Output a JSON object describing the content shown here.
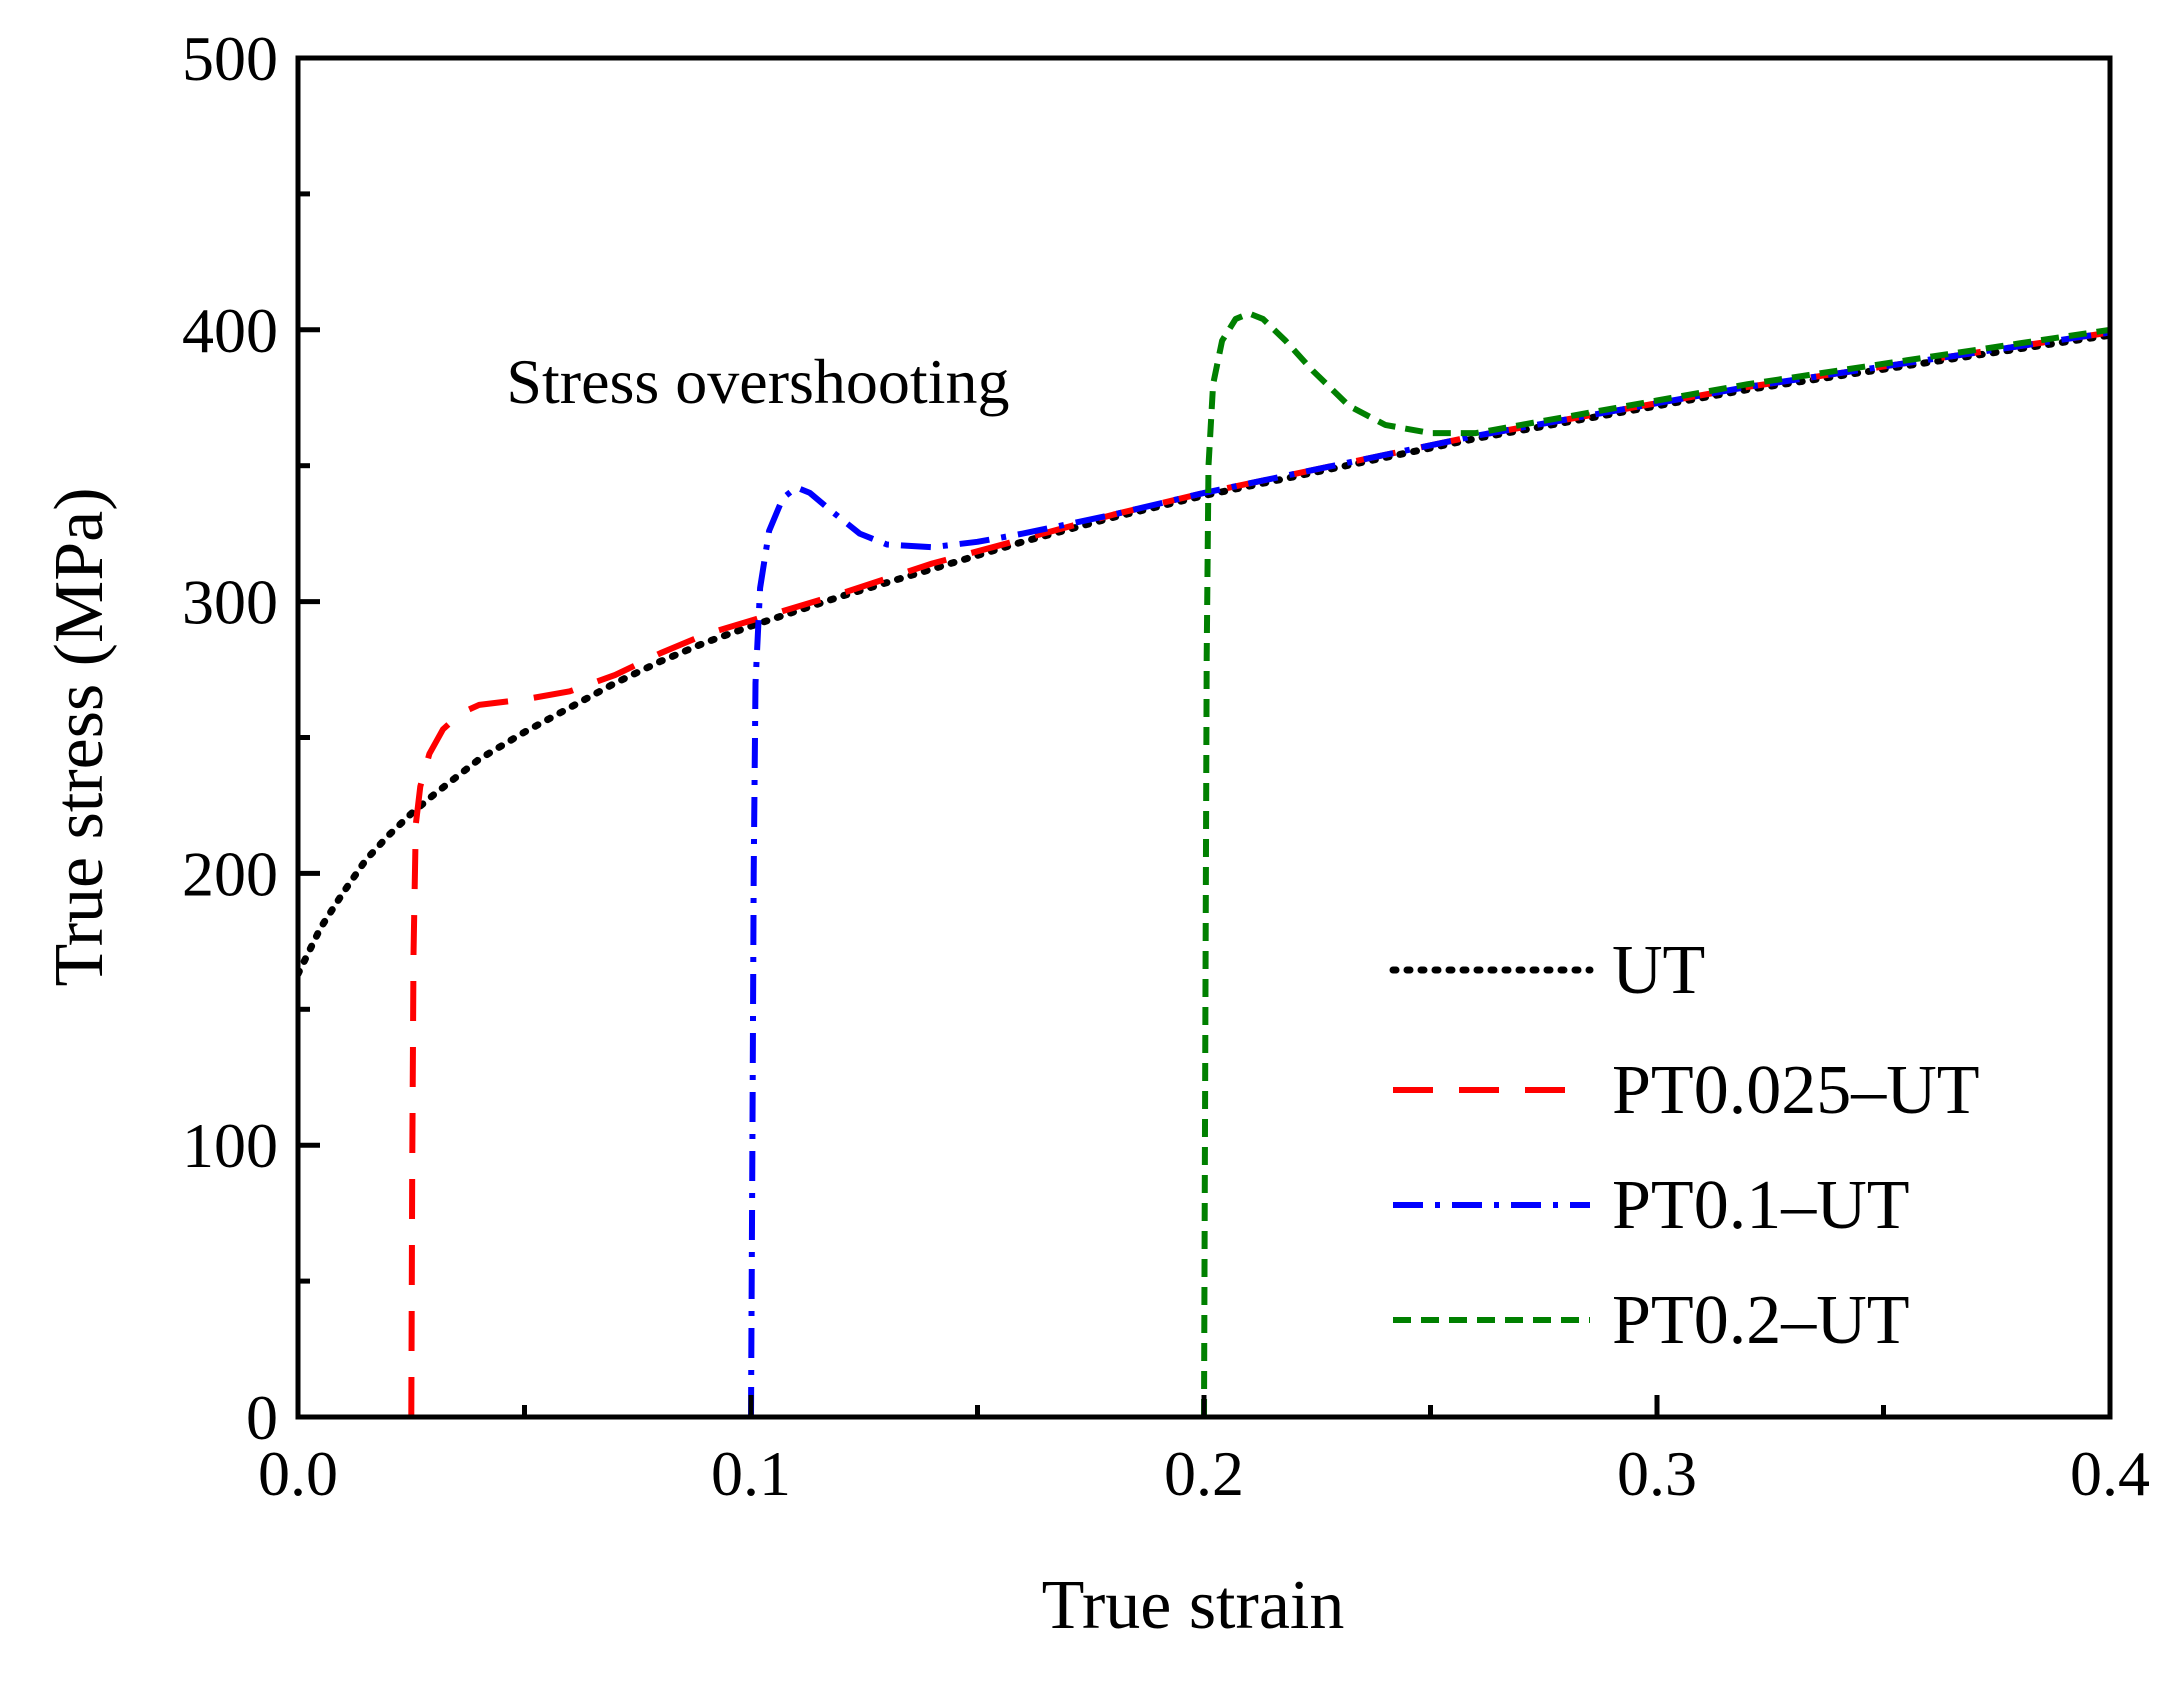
{
  "chart_data": {
    "type": "line",
    "title": "",
    "xlabel": "True strain",
    "ylabel": "True stress (MPa)",
    "xlim": [
      0.0,
      0.4
    ],
    "ylim": [
      0,
      500
    ],
    "x_ticks": [
      0.0,
      0.1,
      0.2,
      0.3,
      0.4
    ],
    "x_tick_labels": [
      "0.0",
      "0.1",
      "0.2",
      "0.3",
      "0.4"
    ],
    "y_ticks": [
      0,
      100,
      200,
      300,
      400,
      500
    ],
    "y_tick_labels": [
      "0",
      "100",
      "200",
      "300",
      "400",
      "500"
    ],
    "grid": false,
    "legend_position": "bottom-right",
    "annotations": [
      {
        "text": "Stress overshooting",
        "x": 0.046,
        "y": 373
      }
    ],
    "series": [
      {
        "name": "UT",
        "color": "#000000",
        "style": "dotted",
        "points": [
          [
            0.0,
            163
          ],
          [
            0.005,
            180
          ],
          [
            0.01,
            193
          ],
          [
            0.015,
            205
          ],
          [
            0.02,
            214
          ],
          [
            0.025,
            222
          ],
          [
            0.03,
            229
          ],
          [
            0.04,
            242
          ],
          [
            0.05,
            252
          ],
          [
            0.06,
            261
          ],
          [
            0.07,
            270
          ],
          [
            0.08,
            278
          ],
          [
            0.09,
            285
          ],
          [
            0.1,
            291
          ],
          [
            0.12,
            302
          ],
          [
            0.14,
            312
          ],
          [
            0.16,
            322
          ],
          [
            0.18,
            331
          ],
          [
            0.2,
            339
          ],
          [
            0.22,
            346
          ],
          [
            0.24,
            353
          ],
          [
            0.26,
            360
          ],
          [
            0.28,
            366
          ],
          [
            0.3,
            372
          ],
          [
            0.32,
            378
          ],
          [
            0.34,
            383
          ],
          [
            0.36,
            388
          ],
          [
            0.38,
            393
          ],
          [
            0.4,
            398
          ]
        ]
      },
      {
        "name": "PT0.025–UT",
        "color": "#ff0000",
        "style": "dashed",
        "points": [
          [
            0.025,
            0
          ],
          [
            0.0252,
            90
          ],
          [
            0.0255,
            170
          ],
          [
            0.026,
            218
          ],
          [
            0.027,
            232
          ],
          [
            0.029,
            244
          ],
          [
            0.032,
            253
          ],
          [
            0.036,
            259
          ],
          [
            0.04,
            262
          ],
          [
            0.05,
            264
          ],
          [
            0.06,
            267
          ],
          [
            0.07,
            273
          ],
          [
            0.08,
            281
          ],
          [
            0.09,
            288
          ],
          [
            0.1,
            293
          ],
          [
            0.12,
            303
          ],
          [
            0.14,
            314
          ],
          [
            0.16,
            323
          ],
          [
            0.18,
            332
          ],
          [
            0.2,
            340
          ],
          [
            0.22,
            347
          ],
          [
            0.24,
            354
          ],
          [
            0.26,
            361
          ],
          [
            0.28,
            367
          ],
          [
            0.3,
            373
          ],
          [
            0.32,
            379
          ],
          [
            0.34,
            384
          ],
          [
            0.36,
            389
          ],
          [
            0.38,
            394
          ],
          [
            0.4,
            399
          ]
        ]
      },
      {
        "name": "PT0.1–UT",
        "color": "#0000ff",
        "style": "dashdot",
        "points": [
          [
            0.1,
            0
          ],
          [
            0.1003,
            100
          ],
          [
            0.1006,
            200
          ],
          [
            0.101,
            270
          ],
          [
            0.102,
            305
          ],
          [
            0.104,
            326
          ],
          [
            0.107,
            338
          ],
          [
            0.11,
            342
          ],
          [
            0.113,
            340
          ],
          [
            0.118,
            333
          ],
          [
            0.124,
            325
          ],
          [
            0.13,
            321
          ],
          [
            0.14,
            320
          ],
          [
            0.15,
            322
          ],
          [
            0.16,
            325
          ],
          [
            0.18,
            332
          ],
          [
            0.2,
            340
          ],
          [
            0.22,
            347
          ],
          [
            0.24,
            354
          ],
          [
            0.26,
            361
          ],
          [
            0.28,
            367
          ],
          [
            0.3,
            373
          ],
          [
            0.32,
            379
          ],
          [
            0.34,
            384
          ],
          [
            0.36,
            389
          ],
          [
            0.38,
            394
          ],
          [
            0.4,
            399
          ]
        ]
      },
      {
        "name": "PT0.2–UT",
        "color": "#008000",
        "style": "shortdash",
        "points": [
          [
            0.2,
            0
          ],
          [
            0.2003,
            150
          ],
          [
            0.2006,
            280
          ],
          [
            0.201,
            350
          ],
          [
            0.202,
            380
          ],
          [
            0.204,
            396
          ],
          [
            0.207,
            404
          ],
          [
            0.21,
            406
          ],
          [
            0.213,
            404
          ],
          [
            0.218,
            396
          ],
          [
            0.224,
            385
          ],
          [
            0.232,
            372
          ],
          [
            0.24,
            365
          ],
          [
            0.25,
            362
          ],
          [
            0.26,
            362
          ],
          [
            0.27,
            365
          ],
          [
            0.28,
            368
          ],
          [
            0.3,
            374
          ],
          [
            0.32,
            380
          ],
          [
            0.34,
            385
          ],
          [
            0.36,
            390
          ],
          [
            0.38,
            395
          ],
          [
            0.4,
            400
          ]
        ]
      }
    ]
  }
}
